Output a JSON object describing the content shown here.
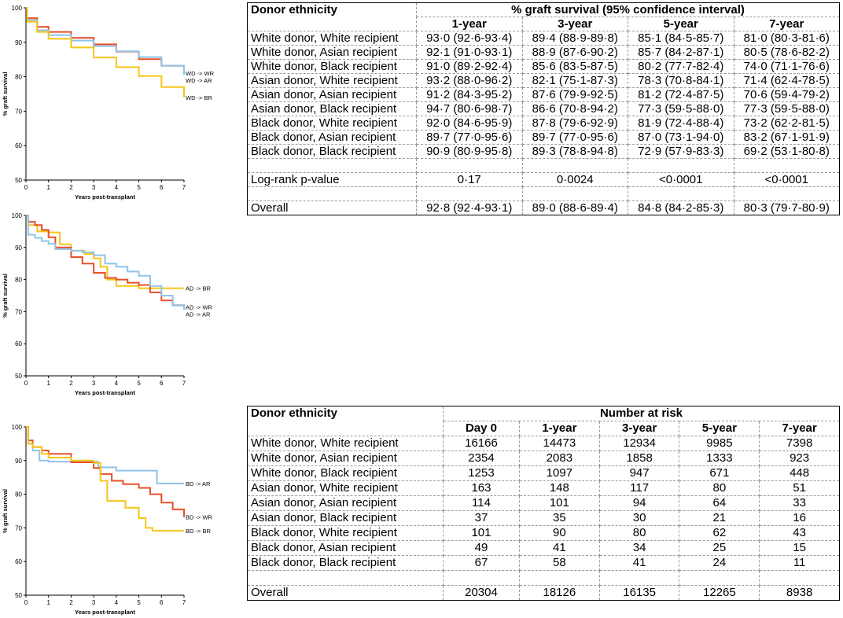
{
  "chart_data": [
    {
      "type": "line",
      "xlabel": "Years post-transplant",
      "ylabel": "% graft survival",
      "xlim": [
        0,
        7
      ],
      "ylim": [
        50,
        100
      ],
      "x_ticks": [
        "0",
        "1",
        "2",
        "3",
        "4",
        "5",
        "6",
        "7"
      ],
      "y_ticks": [
        "50",
        "60",
        "70",
        "80",
        "90",
        "100"
      ],
      "series": [
        {
          "name": "WD -> WR",
          "color": "#E8502A",
          "points": [
            [
              0,
              100
            ],
            [
              0.05,
              97
            ],
            [
              0.5,
              94.5
            ],
            [
              1,
              93
            ],
            [
              2,
              91.3
            ],
            [
              3,
              89.4
            ],
            [
              4,
              87.3
            ],
            [
              5,
              85.1
            ],
            [
              6,
              83.2
            ],
            [
              7,
              81
            ]
          ]
        },
        {
          "name": "WD -> AR",
          "color": "#8FC3E8",
          "points": [
            [
              0,
              100
            ],
            [
              0.05,
              96.5
            ],
            [
              0.5,
              93.5
            ],
            [
              1,
              92.1
            ],
            [
              2,
              90.5
            ],
            [
              3,
              88.9
            ],
            [
              4,
              87.4
            ],
            [
              5,
              85.7
            ],
            [
              6,
              83.2
            ],
            [
              7,
              80.5
            ]
          ]
        },
        {
          "name": "WD -> BR",
          "color": "#F5C518",
          "points": [
            [
              0,
              100
            ],
            [
              0.05,
              96
            ],
            [
              0.5,
              93
            ],
            [
              1,
              91
            ],
            [
              2,
              88.5
            ],
            [
              3,
              85.6
            ],
            [
              4,
              82.8
            ],
            [
              5,
              80.2
            ],
            [
              6,
              77
            ],
            [
              7,
              74
            ]
          ]
        }
      ]
    },
    {
      "type": "line",
      "xlabel": "Years post-transplant",
      "ylabel": "% graft survival",
      "xlim": [
        0,
        7
      ],
      "ylim": [
        50,
        100
      ],
      "x_ticks": [
        "0",
        "1",
        "2",
        "3",
        "4",
        "5",
        "6",
        "7"
      ],
      "y_ticks": [
        "50",
        "60",
        "70",
        "80",
        "90",
        "100"
      ],
      "series": [
        {
          "name": "AD -> BR",
          "color": "#F5C518",
          "points": [
            [
              0,
              100
            ],
            [
              0.1,
              97
            ],
            [
              0.3,
              97
            ],
            [
              0.5,
              95
            ],
            [
              1,
              94.7
            ],
            [
              1.5,
              91
            ],
            [
              2,
              89
            ],
            [
              2.6,
              88
            ],
            [
              3,
              86.6
            ],
            [
              3.3,
              84
            ],
            [
              3.6,
              80
            ],
            [
              4,
              78
            ],
            [
              5,
              77.3
            ],
            [
              6,
              77.3
            ],
            [
              7,
              77.3
            ]
          ]
        },
        {
          "name": "AD -> WR",
          "color": "#E8502A",
          "points": [
            [
              0,
              100
            ],
            [
              0.1,
              98
            ],
            [
              0.4,
              97
            ],
            [
              0.7,
              95.5
            ],
            [
              1,
              93.2
            ],
            [
              1.3,
              90
            ],
            [
              2,
              87
            ],
            [
              2.5,
              85
            ],
            [
              3,
              82.1
            ],
            [
              3.5,
              80.5
            ],
            [
              4,
              80
            ],
            [
              4.5,
              79
            ],
            [
              5,
              78.3
            ],
            [
              5.5,
              76
            ],
            [
              6,
              73.5
            ],
            [
              6.5,
              72
            ],
            [
              7,
              71.4
            ]
          ]
        },
        {
          "name": "AD -> AR",
          "color": "#8FC3E8",
          "points": [
            [
              0,
              100
            ],
            [
              0.1,
              94
            ],
            [
              0.4,
              93
            ],
            [
              0.7,
              92
            ],
            [
              1,
              91.2
            ],
            [
              1.3,
              89.5
            ],
            [
              2,
              89
            ],
            [
              2.5,
              88.5
            ],
            [
              3,
              87.6
            ],
            [
              3.5,
              85
            ],
            [
              4,
              84
            ],
            [
              4.5,
              82.5
            ],
            [
              5,
              81.2
            ],
            [
              5.5,
              78
            ],
            [
              6,
              75
            ],
            [
              6.5,
              72
            ],
            [
              7,
              70.6
            ]
          ]
        }
      ]
    },
    {
      "type": "line",
      "xlabel": "Years post-transplant",
      "ylabel": "% graft survival",
      "xlim": [
        0,
        7
      ],
      "ylim": [
        50,
        100
      ],
      "x_ticks": [
        "0",
        "1",
        "2",
        "3",
        "4",
        "5",
        "6",
        "7"
      ],
      "y_ticks": [
        "50",
        "60",
        "70",
        "80",
        "90",
        "100"
      ],
      "series": [
        {
          "name": "BD -> AR",
          "color": "#8FC3E8",
          "points": [
            [
              0,
              100
            ],
            [
              0.1,
              95
            ],
            [
              0.3,
              93
            ],
            [
              0.6,
              90
            ],
            [
              1,
              89.7
            ],
            [
              2,
              89.7
            ],
            [
              3,
              89.7
            ],
            [
              3.2,
              88
            ],
            [
              4,
              87
            ],
            [
              5,
              87
            ],
            [
              5.5,
              87
            ],
            [
              5.8,
              83.2
            ],
            [
              7,
              83.2
            ]
          ]
        },
        {
          "name": "BD -> WR",
          "color": "#E8502A",
          "points": [
            [
              0,
              100
            ],
            [
              0.1,
              96
            ],
            [
              0.3,
              94
            ],
            [
              0.7,
              93
            ],
            [
              1,
              92
            ],
            [
              2,
              89.5
            ],
            [
              3,
              87.8
            ],
            [
              3.3,
              86
            ],
            [
              3.8,
              84
            ],
            [
              4.3,
              83
            ],
            [
              5,
              81.9
            ],
            [
              5.5,
              80
            ],
            [
              6,
              77.5
            ],
            [
              6.5,
              75.5
            ],
            [
              7,
              73.2
            ]
          ]
        },
        {
          "name": "BD -> BR",
          "color": "#F5C518",
          "points": [
            [
              0,
              100
            ],
            [
              0.1,
              95
            ],
            [
              0.3,
              94
            ],
            [
              0.7,
              92
            ],
            [
              1,
              90.9
            ],
            [
              2,
              90
            ],
            [
              3,
              89.3
            ],
            [
              3.3,
              84
            ],
            [
              3.6,
              78
            ],
            [
              4,
              78
            ],
            [
              4.4,
              76
            ],
            [
              5,
              72.9
            ],
            [
              5.3,
              70
            ],
            [
              5.6,
              69.2
            ],
            [
              7,
              69.2
            ]
          ]
        }
      ]
    }
  ],
  "survival_table": {
    "header_label": "Donor ethnicity",
    "group_header": "% graft survival (95% confidence interval)",
    "columns": [
      "1-year",
      "3-year",
      "5-year",
      "7-year"
    ],
    "rows": [
      {
        "label": "White donor, White recipient",
        "cells": [
          "93·0 (92·6-93·4)",
          "89·4 (88·9-89·8)",
          "85·1 (84·5-85·7)",
          "81·0 (80·3-81·6)"
        ]
      },
      {
        "label": "White donor, Asian recipient",
        "cells": [
          "92·1 (91·0-93·1)",
          "88·9 (87·6-90·2)",
          "85·7 (84·2-87·1)",
          "80·5 (78·6-82·2)"
        ]
      },
      {
        "label": "White donor, Black recipient",
        "cells": [
          "91·0 (89·2-92·4)",
          "85·6 (83·5-87·5)",
          "80·2 (77·7-82·4)",
          "74·0 (71·1-76·6)"
        ]
      },
      {
        "label": "Asian donor, White recipient",
        "cells": [
          "93·2 (88·0-96·2)",
          "82·1 (75·1-87·3)",
          "78·3 (70·8-84·1)",
          "71·4 (62·4-78·5)"
        ]
      },
      {
        "label": "Asian donor, Asian recipient",
        "cells": [
          "91·2 (84·3-95·2)",
          "87·6 (79·9-92·5)",
          "81·2 (72·4-87·5)",
          "70·6 (59·4-79·2)"
        ]
      },
      {
        "label": "Asian donor, Black recipient",
        "cells": [
          "94·7 (80·6-98·7)",
          "86·6 (70·8-94·2)",
          "77·3 (59·5-88·0)",
          "77·3 (59·5-88·0)"
        ]
      },
      {
        "label": "Black donor, White recipient",
        "cells": [
          "92·0 (84·6-95·9)",
          "87·8 (79·6-92·9)",
          "81·9 (72·4-88·4)",
          "73·2 (62·2-81·5)"
        ]
      },
      {
        "label": "Black donor, Asian recipient",
        "cells": [
          "89·7 (77·0-95·6)",
          "89·7 (77·0-95·6)",
          "87·0 (73·1-94·0)",
          "83·2 (67·1-91·9)"
        ]
      },
      {
        "label": "Black donor, Black recipient",
        "cells": [
          "90·9 (80·9-95·8)",
          "89·3 (78·8-94·8)",
          "72·9 (57·9-83·3)",
          "69·2 (53·1-80·8)"
        ]
      }
    ],
    "logrank": {
      "label": "Log-rank p-value",
      "cells": [
        "0·17",
        "0·0024",
        "<0·0001",
        "<0·0001"
      ]
    },
    "overall": {
      "label": "Overall",
      "cells": [
        "92·8 (92·4-93·1)",
        "89·0 (88·6-89·4)",
        "84·8 (84·2-85·3)",
        "80·3 (79·7-80·9)"
      ]
    }
  },
  "risk_table": {
    "header_label": "Donor ethnicity",
    "group_header": "Number at risk",
    "columns": [
      "Day 0",
      "1-year",
      "3-year",
      "5-year",
      "7-year"
    ],
    "rows": [
      {
        "label": "White donor, White recipient",
        "cells": [
          "16166",
          "14473",
          "12934",
          "9985",
          "7398"
        ]
      },
      {
        "label": "White donor, Asian recipient",
        "cells": [
          "2354",
          "2083",
          "1858",
          "1333",
          "923"
        ]
      },
      {
        "label": "White donor, Black recipient",
        "cells": [
          "1253",
          "1097",
          "947",
          "671",
          "448"
        ]
      },
      {
        "label": "Asian donor, White recipient",
        "cells": [
          "163",
          "148",
          "117",
          "80",
          "51"
        ]
      },
      {
        "label": "Asian donor, Asian recipient",
        "cells": [
          "114",
          "101",
          "94",
          "64",
          "33"
        ]
      },
      {
        "label": "Asian donor, Black recipient",
        "cells": [
          "37",
          "35",
          "30",
          "21",
          "16"
        ]
      },
      {
        "label": "Black donor, White recipient",
        "cells": [
          "101",
          "90",
          "80",
          "62",
          "43"
        ]
      },
      {
        "label": "Black donor, Asian recipient",
        "cells": [
          "49",
          "41",
          "34",
          "25",
          "15"
        ]
      },
      {
        "label": "Black donor, Black recipient",
        "cells": [
          "67",
          "58",
          "41",
          "24",
          "11"
        ]
      }
    ],
    "overall": {
      "label": "Overall",
      "cells": [
        "20304",
        "18126",
        "16135",
        "12265",
        "8938"
      ]
    }
  }
}
